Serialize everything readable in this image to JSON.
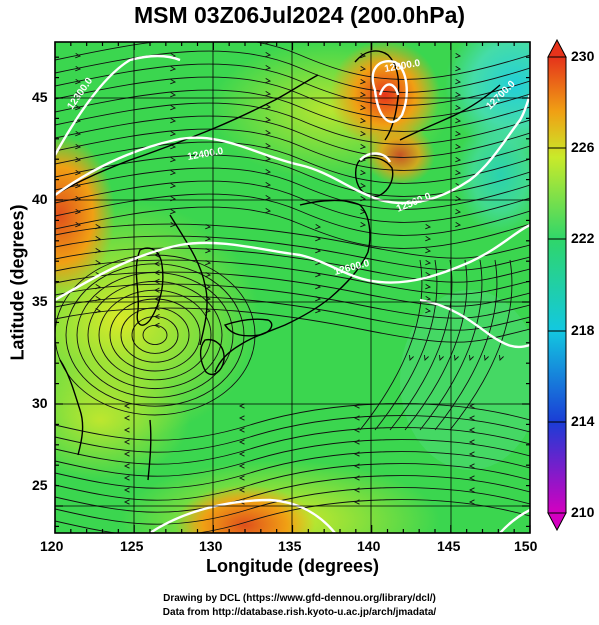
{
  "title": "MSM 03Z06Jul2024 (200.0hPa)",
  "axes": {
    "xlabel": "Longitude (degrees)",
    "ylabel": "Latitude  (degrees)",
    "xticks": [
      "120",
      "125",
      "130",
      "135",
      "140",
      "145",
      "150"
    ],
    "yticks": [
      "45",
      "40",
      "35",
      "30",
      "25"
    ]
  },
  "colorbar": {
    "ticks": [
      "230",
      "226",
      "222",
      "218",
      "214",
      "210"
    ],
    "colors": [
      "#d400c0",
      "#1a3dd6",
      "#13c8e0",
      "#2fd66a",
      "#c9ea2a",
      "#f0a014",
      "#e5331b"
    ]
  },
  "contour_labels": [
    "12300.0",
    "12400.0",
    "12500.0",
    "12600.0",
    "12700.0",
    "12800.0"
  ],
  "credits": [
    "Drawing by DCL (https://www.gfd-dennou.org/library/dcl/)",
    "Data from http://database.rish.kyoto-u.ac.jp/arch/jmadata/"
  ],
  "chart_data": {
    "type": "heatmap",
    "title": "MSM 03Z06Jul2024 (200.0hPa)",
    "xlabel": "Longitude (degrees)",
    "ylabel": "Latitude  (degrees)",
    "xlim": [
      120,
      150
    ],
    "ylim": [
      22.4,
      47.6
    ],
    "color_scale": {
      "min": 210,
      "max": 230,
      "ticks": [
        210,
        214,
        218,
        222,
        226,
        230
      ]
    },
    "contour_levels": [
      12300,
      12400,
      12500,
      12600,
      12700,
      12800
    ],
    "features": [
      "temperature shading",
      "streamlines",
      "geopotential height contours",
      "coastlines",
      "lat/lon grid"
    ],
    "grid": true
  }
}
